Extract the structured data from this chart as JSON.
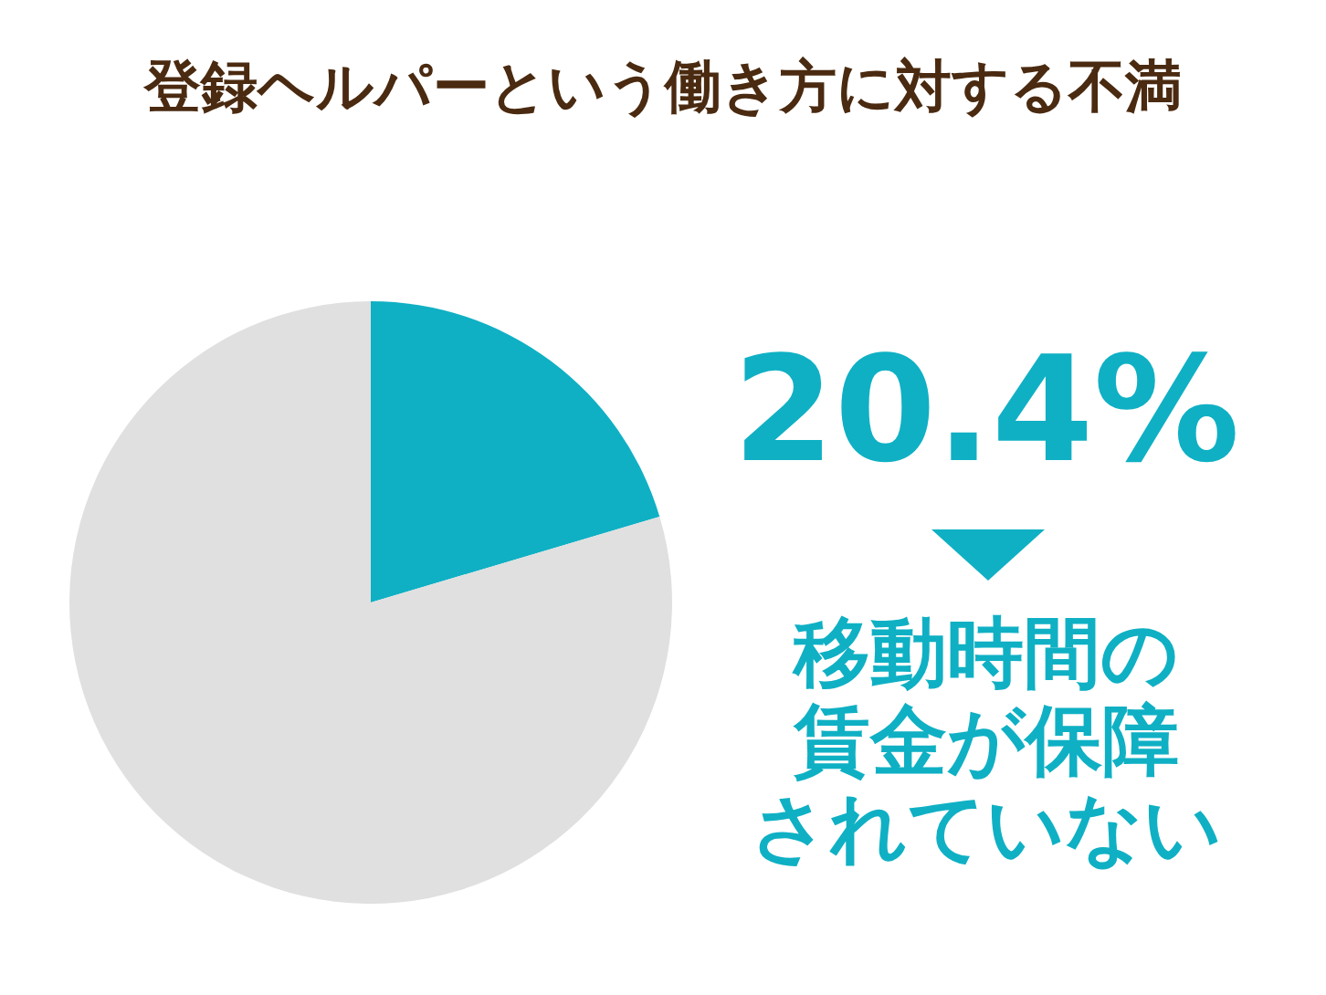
{
  "chart_data": {
    "type": "pie",
    "title": "登録ヘルパーという働き方に対する不満",
    "categories": [
      "移動時間の賃金が保障されていない",
      null
    ],
    "values": [
      20.4,
      79.6
    ],
    "colors": [
      "#0fb0c4",
      "#e0e0e0"
    ],
    "value_labels": [
      "20.4%",
      null
    ]
  }
}
